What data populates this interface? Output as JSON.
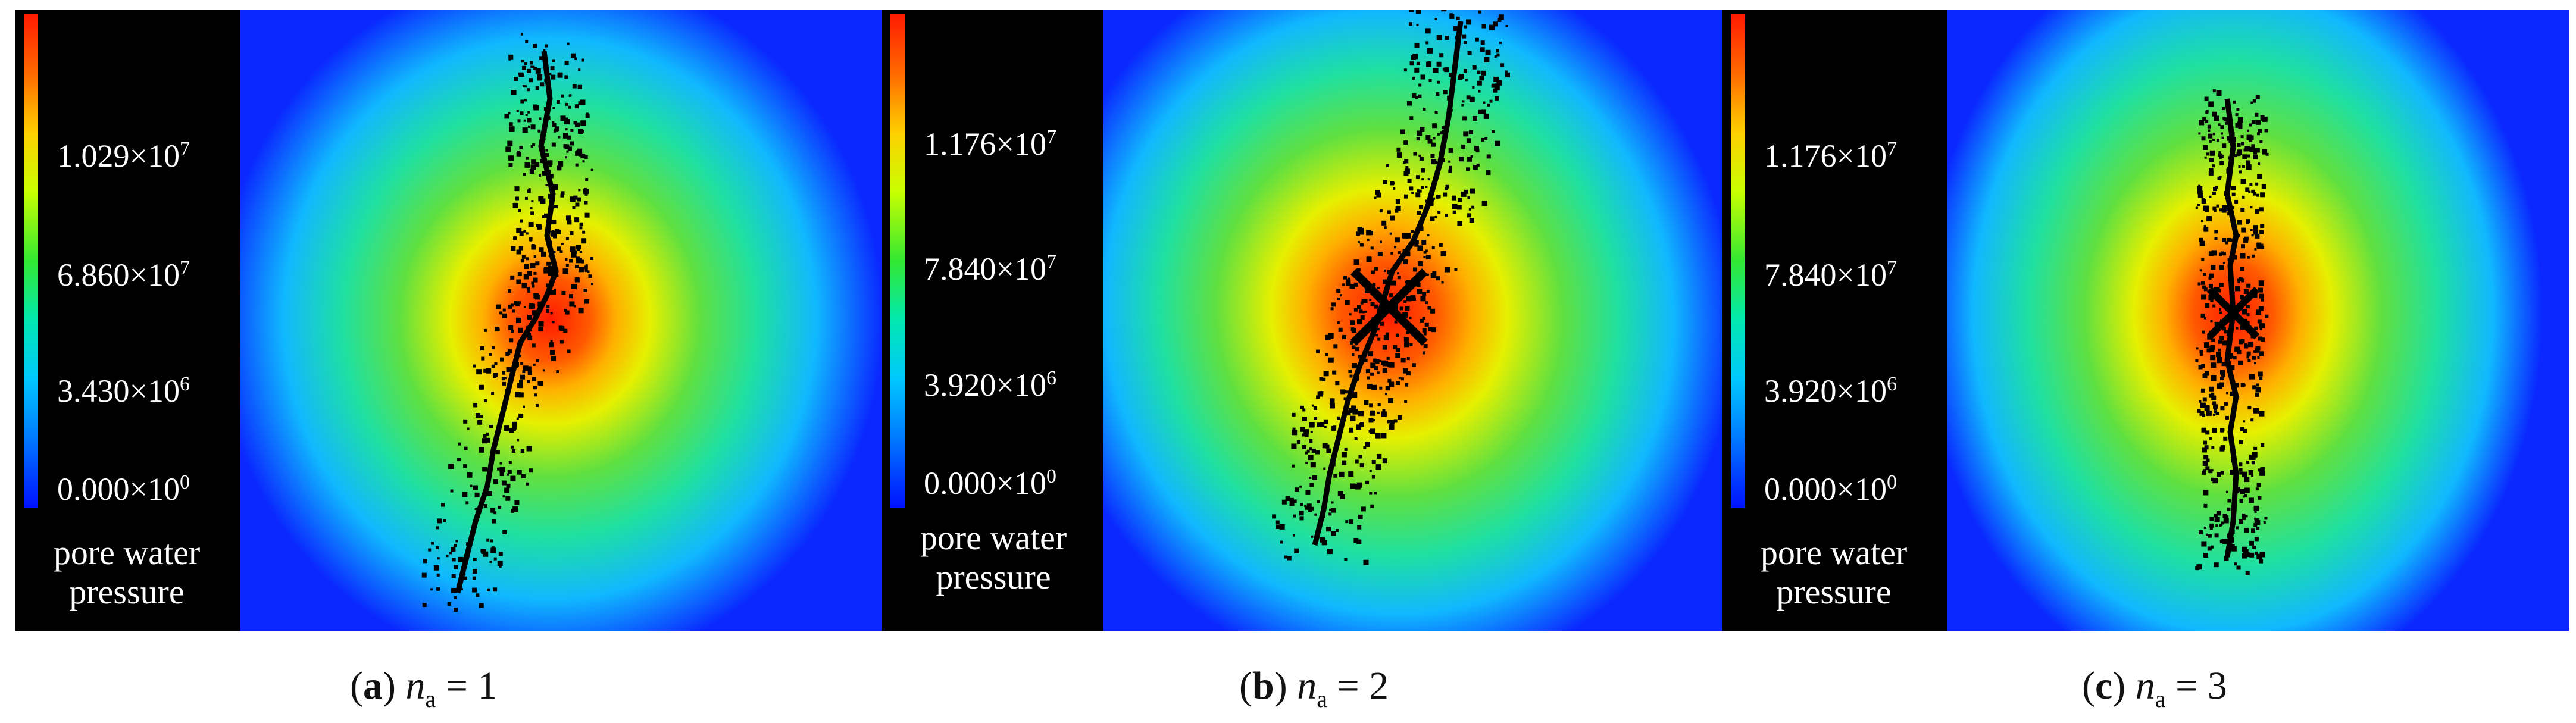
{
  "panels": [
    {
      "id": "a",
      "colorbar": {
        "ticks": [
          "1.029×10",
          "6.860×10",
          "3.430×10",
          "0.000×10"
        ],
        "exponents": [
          "7",
          "7",
          "6",
          "0"
        ],
        "title_line1": "pore water",
        "title_line2": "pressure"
      },
      "caption": {
        "letter": "a",
        "var": "n",
        "sub": "a",
        "rest": " = 1"
      }
    },
    {
      "id": "b",
      "colorbar": {
        "ticks": [
          "1.176×10",
          "7.840×10",
          "3.920×10",
          "0.000×10"
        ],
        "exponents": [
          "7",
          "7",
          "6",
          "0"
        ],
        "title_line1": "pore water",
        "title_line2": "pressure"
      },
      "caption": {
        "letter": "b",
        "var": "n",
        "sub": "a",
        "rest": " = 2"
      }
    },
    {
      "id": "c",
      "colorbar": {
        "ticks": [
          "1.176×10",
          "7.840×10",
          "3.920×10",
          "0.000×10"
        ],
        "exponents": [
          "7",
          "7",
          "6",
          "0"
        ],
        "title_line1": "pore water",
        "title_line2": "pressure"
      },
      "caption": {
        "letter": "c",
        "var": "n",
        "sub": "a",
        "rest": " = 3"
      }
    }
  ],
  "colors": {
    "background": "#0a28ff",
    "cyan": "#00e0e0",
    "green": "#40e040",
    "yellow": "#f0f000",
    "orange": "#ff7000",
    "red": "#ff2000",
    "crack": "#000000"
  }
}
